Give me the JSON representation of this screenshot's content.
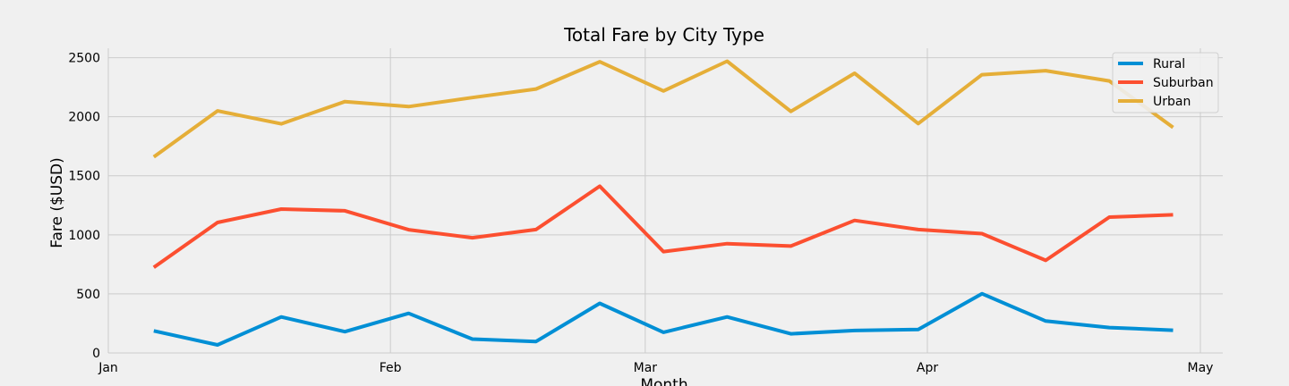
{
  "chart_data": {
    "type": "line",
    "title": "Total Fare by City Type",
    "xlabel": "Month",
    "ylabel": "Fare ($USD)",
    "x": [
      "2019-01-06",
      "2019-01-13",
      "2019-01-20",
      "2019-01-27",
      "2019-02-03",
      "2019-02-10",
      "2019-02-17",
      "2019-02-24",
      "2019-03-03",
      "2019-03-10",
      "2019-03-17",
      "2019-03-24",
      "2019-03-31",
      "2019-04-07",
      "2019-04-14",
      "2019-04-21",
      "2019-04-28"
    ],
    "xlim": [
      "2019-01-01",
      "2019-05-01"
    ],
    "x_ticks": [
      {
        "label": "Jan",
        "date": "2019-01-01"
      },
      {
        "label": "Feb",
        "date": "2019-02-01"
      },
      {
        "label": "Mar",
        "date": "2019-03-01"
      },
      {
        "label": "Apr",
        "date": "2019-04-01"
      },
      {
        "label": "May",
        "date": "2019-05-01"
      }
    ],
    "ylim": [
      0,
      2580
    ],
    "y_ticks": [
      0,
      500,
      1000,
      1500,
      2000,
      2500
    ],
    "grid": true,
    "legend_position": "top-right",
    "series": [
      {
        "name": "Rural",
        "color": "#008fd5",
        "values": [
          187,
          68,
          305,
          180,
          335,
          117,
          97,
          420,
          175,
          305,
          162,
          190,
          199,
          502,
          270,
          215,
          192
        ]
      },
      {
        "name": "Suburban",
        "color": "#fc4f30",
        "values": [
          725,
          1105,
          1218,
          1204,
          1043,
          975,
          1045,
          1412,
          858,
          925,
          905,
          1122,
          1045,
          1010,
          784,
          1150,
          1170
        ]
      },
      {
        "name": "Urban",
        "color": "#e5ae38",
        "values": [
          1660,
          2050,
          1940,
          2128,
          2086,
          2162,
          2235,
          2466,
          2218,
          2470,
          2045,
          2368,
          1942,
          2356,
          2390,
          2303,
          1910
        ]
      }
    ]
  }
}
